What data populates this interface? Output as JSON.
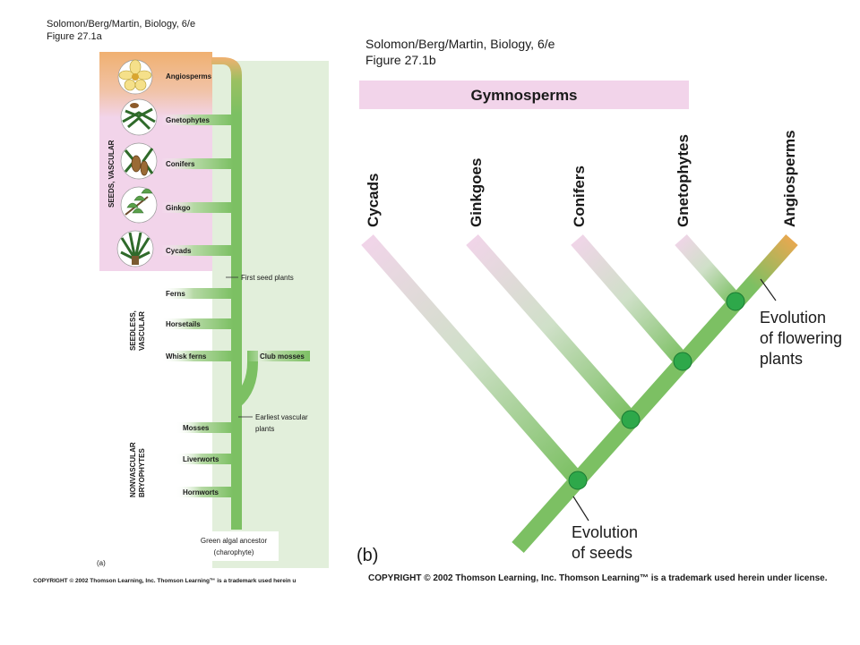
{
  "left_panel": {
    "header_line1": "Solomon/Berg/Martin, Biology, 6/e",
    "header_line2": "Figure 27.1a",
    "group_seeds": "SEEDS, VASCULAR",
    "group_seedless_1": "SEEDLESS,",
    "group_seedless_2": "VASCULAR",
    "group_nonvascular_1": "NONVASCULAR",
    "group_nonvascular_2": "BRYOPHYTES",
    "taxa": {
      "angiosperms": "Angiosperms",
      "gnetophytes": "Gnetophytes",
      "conifers": "Conifers",
      "ginkgo": "Ginkgo",
      "cycads": "Cycads",
      "ferns": "Ferns",
      "horsetails": "Horsetails",
      "whisk_ferns": "Whisk ferns",
      "club_mosses": "Club mosses",
      "mosses": "Mosses",
      "liverworts": "Liverworts",
      "hornworts": "Hornworts"
    },
    "first_seed_plants": "First seed plants",
    "earliest_vascular_1": "Earliest vascular",
    "earliest_vascular_2": "plants",
    "ancestor_1": "Green algal ancestor",
    "ancestor_2": "(charophyte)",
    "panel_label": "(a)",
    "copyright": "COPYRIGHT © 2002 Thomson Learning, Inc. Thomson Learning™ is a trademark used herein u"
  },
  "right_panel": {
    "header_line1": "Solomon/Berg/Martin, Biology, 6/e",
    "header_line2": "Figure 27.1b",
    "gymnosperms": "Gymnosperms",
    "taxa": {
      "cycads": "Cycads",
      "ginkgoes": "Ginkgoes",
      "conifers": "Conifers",
      "gnetophytes": "Gnetophytes",
      "angiosperms": "Angiosperms"
    },
    "flowering_1": "Evolution",
    "flowering_2": "of flowering",
    "flowering_3": "plants",
    "seeds_1": "Evolution",
    "seeds_2": "of seeds",
    "panel_label": "(b)",
    "copyright": "COPYRIGHT © 2002 Thomson Learning, Inc. Thomson Learning™ is a trademark used herein under license."
  },
  "colors": {
    "branch_green": "#7cc063",
    "panel_bg": "#e2efdb",
    "pink": "#f2d4ea",
    "orange": "#f0b070",
    "node_green": "#2ea84a"
  }
}
